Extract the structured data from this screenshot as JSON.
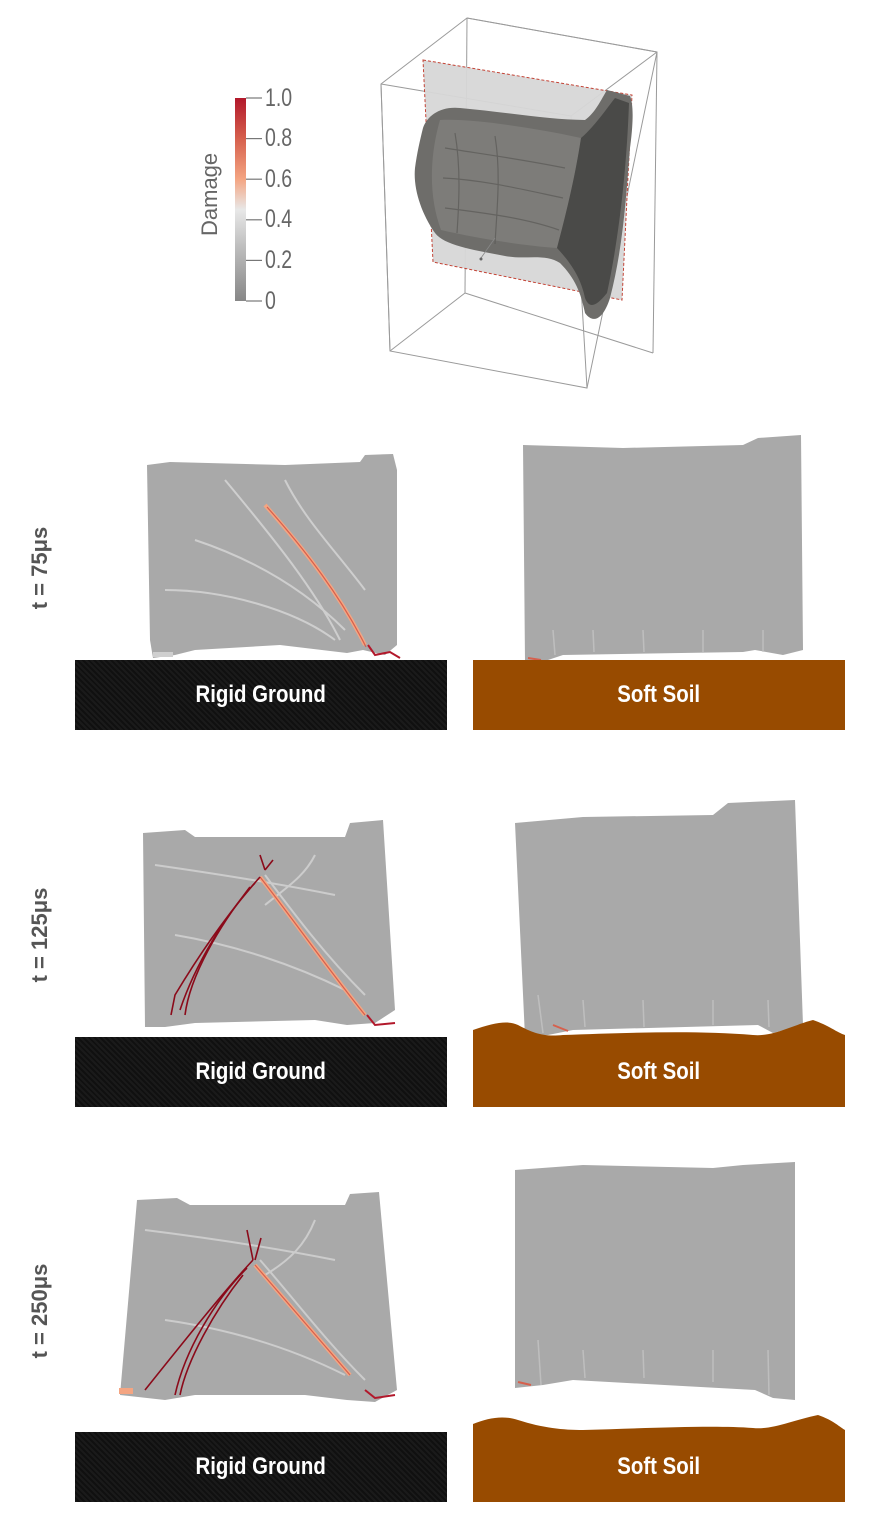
{
  "colorbar": {
    "title": "Damage",
    "ticks": [
      "1.0",
      "0.8",
      "0.6",
      "0.4",
      "0.2",
      "0"
    ]
  },
  "rows": [
    {
      "label": "t = 75μs"
    },
    {
      "label": "t = 125μs"
    },
    {
      "label": "t = 250μs"
    }
  ],
  "grounds": {
    "rigid": "Rigid Ground",
    "soft": "Soft Soil"
  },
  "colors": {
    "rigid_ground": "#121212",
    "soft_soil": "#984b00",
    "body_gray": "#a6a6a6",
    "damage_high": "#b2182b",
    "damage_mid": "#f4a582",
    "crack_dark": "#8b0a1a"
  }
}
